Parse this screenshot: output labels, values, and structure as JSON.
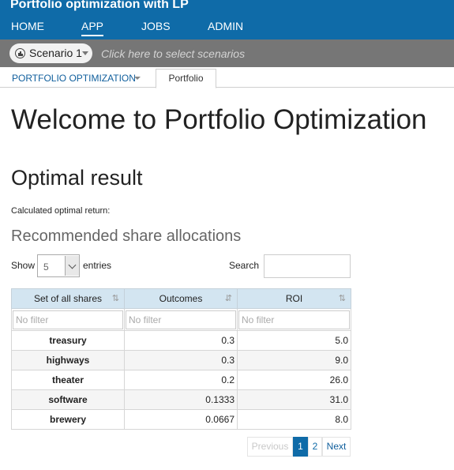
{
  "app": {
    "title": "Portfolio optimization with LP"
  },
  "nav": {
    "items": [
      "HOME",
      "APP",
      "JOBS",
      "ADMIN"
    ],
    "active": "APP"
  },
  "scenario": {
    "selected": "Scenario 1",
    "hint": "Click here to select scenarios"
  },
  "tabs": {
    "dropdown": "PORTFOLIO OPTIMIZATION",
    "active_tab": "Portfolio"
  },
  "content": {
    "welcome_title": "Welcome to Portfolio Optimization",
    "result_title": "Optimal result",
    "calculated_label": "Calculated optimal return:",
    "allocations_title": "Recommended share allocations"
  },
  "table_controls": {
    "show_label": "Show",
    "show_value": "5",
    "entries_label": "entries",
    "search_label": "Search"
  },
  "table": {
    "columns": [
      "Set of all shares",
      "Outcomes",
      "ROI"
    ],
    "filter_placeholder": "No filter",
    "rows": [
      {
        "share": "treasury",
        "outcome": "0.3",
        "roi": "5.0"
      },
      {
        "share": "highways",
        "outcome": "0.3",
        "roi": "9.0"
      },
      {
        "share": "theater",
        "outcome": "0.2",
        "roi": "26.0"
      },
      {
        "share": "software",
        "outcome": "0.1333",
        "roi": "31.0"
      },
      {
        "share": "brewery",
        "outcome": "0.0667",
        "roi": "8.0"
      }
    ]
  },
  "pagination": {
    "previous": "Previous",
    "pages": [
      "1",
      "2"
    ],
    "current": "1",
    "next": "Next"
  },
  "colors": {
    "brand": "#0f6ba8",
    "scenario_bar": "#767676",
    "header_row": "#d3e5f1"
  }
}
